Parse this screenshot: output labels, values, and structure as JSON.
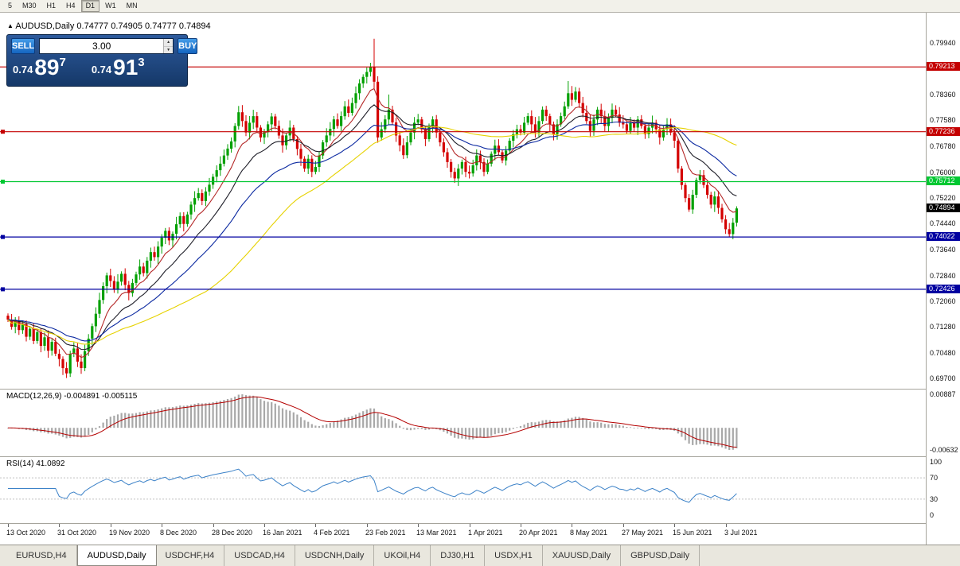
{
  "toolbar": {
    "timeframes": [
      "5",
      "M30",
      "H1",
      "H4",
      "D1",
      "W1",
      "MN"
    ],
    "active": "D1"
  },
  "chart": {
    "title_symbol": "AUDUSD,Daily",
    "title_ohlc": "0.74777 0.74905 0.74777 0.74894",
    "trade_panel": {
      "sell_label": "SELL",
      "buy_label": "BUY",
      "volume": "3.00",
      "bid": {
        "small": "0.74",
        "big": "89",
        "sup": "7"
      },
      "ask": {
        "small": "0.74",
        "big": "91",
        "sup": "3"
      }
    },
    "price_scale": {
      "ticks": [
        "0.79940",
        "0.78360",
        "0.77580",
        "0.76780",
        "0.76000",
        "0.75220",
        "0.74440",
        "0.73640",
        "0.72840",
        "0.72060",
        "0.71280",
        "0.70480",
        "0.69700"
      ],
      "current": "0.74894"
    },
    "levels": [
      {
        "price": 0.79213,
        "label": "0.79213",
        "color": "#c40000",
        "handle": false
      },
      {
        "price": 0.77236,
        "label": "0.77236",
        "color": "#c40000",
        "handle": true
      },
      {
        "price": 0.75712,
        "label": "0.75712",
        "color": "#00c832",
        "handle": true
      },
      {
        "price": 0.74022,
        "label": "0.74022",
        "color": "#0000a0",
        "handle": true
      },
      {
        "price": 0.72426,
        "label": "0.72426",
        "color": "#0000a0",
        "handle": true
      }
    ],
    "macd": {
      "label": "MACD(12,26,9)",
      "values": "-0.004891 -0.005115",
      "scale_top": "0.00887",
      "scale_bottom": "-0.00632"
    },
    "rsi": {
      "label": "RSI(14)",
      "value": "41.0892",
      "levels": [
        "100",
        "70",
        "30",
        "0"
      ]
    },
    "colors": {
      "up": "#00a000",
      "down": "#d40000",
      "macd_hist": "#a8a8a8",
      "macd_signal": "#b40000",
      "rsi_line": "#3c82c8"
    }
  },
  "chart_data": {
    "type": "candlestick",
    "symbol": "AUDUSD",
    "timeframe": "Daily",
    "price_axis": {
      "max": 0.806,
      "min": 0.6944
    },
    "x_labels": [
      {
        "text": "13 Oct 2020",
        "i": 0
      },
      {
        "text": "31 Oct 2020",
        "i": 14
      },
      {
        "text": "19 Nov 2020",
        "i": 28
      },
      {
        "text": "8 Dec 2020",
        "i": 42
      },
      {
        "text": "28 Dec 2020",
        "i": 56
      },
      {
        "text": "16 Jan 2021",
        "i": 70
      },
      {
        "text": "4 Feb 2021",
        "i": 84
      },
      {
        "text": "23 Feb 2021",
        "i": 98
      },
      {
        "text": "13 Mar 2021",
        "i": 112
      },
      {
        "text": "1 Apr 2021",
        "i": 126
      },
      {
        "text": "20 Apr 2021",
        "i": 140
      },
      {
        "text": "8 May 2021",
        "i": 154
      },
      {
        "text": "27 May 2021",
        "i": 168
      },
      {
        "text": "15 Jun 2021",
        "i": 182
      },
      {
        "text": "3 Jul 2021",
        "i": 196
      }
    ],
    "closes": [
      0.715,
      0.7128,
      0.7146,
      0.7118,
      0.7136,
      0.7098,
      0.7122,
      0.7085,
      0.7112,
      0.707,
      0.7096,
      0.7055,
      0.7082,
      0.7046,
      0.703,
      0.7002,
      0.6986,
      0.7046,
      0.7062,
      0.7022,
      0.7002,
      0.7054,
      0.7092,
      0.713,
      0.7168,
      0.721,
      0.7252,
      0.7285,
      0.7268,
      0.7241,
      0.7266,
      0.729,
      0.7256,
      0.7231,
      0.7262,
      0.7288,
      0.7312,
      0.7292,
      0.733,
      0.7356,
      0.7341,
      0.7373,
      0.74,
      0.7421,
      0.7392,
      0.7412,
      0.7441,
      0.7466,
      0.7442,
      0.7471,
      0.7501,
      0.7521,
      0.7536,
      0.7512,
      0.7541,
      0.7562,
      0.7586,
      0.7606,
      0.7626,
      0.7651,
      0.7672,
      0.7694,
      0.7741,
      0.7783,
      0.7756,
      0.7721,
      0.7751,
      0.7771,
      0.7736,
      0.7706,
      0.7722,
      0.7746,
      0.777,
      0.7741,
      0.7712,
      0.7682,
      0.7712,
      0.7736,
      0.7701,
      0.7671,
      0.7641,
      0.7611,
      0.7641,
      0.7601,
      0.7616,
      0.7651,
      0.7691,
      0.7712,
      0.7732,
      0.7761,
      0.7741,
      0.7771,
      0.7801,
      0.7781,
      0.7811,
      0.7841,
      0.7871,
      0.7891,
      0.7906,
      0.7921,
      0.7876,
      0.7706,
      0.7731,
      0.7761,
      0.7791,
      0.7752,
      0.7712,
      0.7682,
      0.7652,
      0.7691,
      0.7721,
      0.7751,
      0.7761,
      0.7731,
      0.7701,
      0.7741,
      0.7761,
      0.7721,
      0.7691,
      0.7661,
      0.7631,
      0.7601,
      0.7581,
      0.7611,
      0.7631,
      0.7601,
      0.7596,
      0.7621,
      0.7651,
      0.7631,
      0.7601,
      0.7626,
      0.7656,
      0.7681,
      0.7661,
      0.7636,
      0.7666,
      0.7696,
      0.7716,
      0.7731,
      0.7721,
      0.7751,
      0.7771,
      0.7746,
      0.7721,
      0.7756,
      0.7791,
      0.7771,
      0.7746,
      0.7716,
      0.7746,
      0.7771,
      0.7801,
      0.7841,
      0.7821,
      0.7846,
      0.7811,
      0.7781,
      0.7756,
      0.7726,
      0.7761,
      0.7791,
      0.7771,
      0.7741,
      0.7766,
      0.7791,
      0.7776,
      0.7751,
      0.7746,
      0.7726,
      0.7751,
      0.7736,
      0.7761,
      0.7741,
      0.7716,
      0.7736,
      0.7751,
      0.7731,
      0.7706,
      0.7731,
      0.7746,
      0.7721,
      0.7696,
      0.7611,
      0.7561,
      0.7521,
      0.7486,
      0.7531,
      0.7576,
      0.7591,
      0.7561,
      0.7531,
      0.7501,
      0.7526,
      0.7491,
      0.7456,
      0.7426,
      0.7411,
      0.7446,
      0.74894
    ],
    "overrides": {
      "16": {
        "low": 0.6972
      },
      "63": {
        "high": 0.7802
      },
      "100": {
        "high": 0.8007,
        "low": 0.7856
      },
      "101": {
        "low": 0.769
      },
      "104": {
        "high": 0.7837
      },
      "153": {
        "high": 0.7878
      },
      "183": {
        "low": 0.7598
      },
      "197": {
        "low": 0.7402
      },
      "199": {
        "high": 0.7496
      }
    },
    "ma_lines": [
      {
        "type": "ema",
        "period": 9,
        "color": "#b42828"
      },
      {
        "type": "ema",
        "period": 18,
        "color": "#1e1e28"
      },
      {
        "type": "ema",
        "period": 34,
        "color": "#0a28a0"
      },
      {
        "type": "sma",
        "period": 55,
        "color": "#e6d200"
      }
    ]
  },
  "bottom_tabs": {
    "tabs": [
      "EURUSD,H4",
      "AUDUSD,Daily",
      "USDCHF,H4",
      "USDCAD,H4",
      "USDCNH,Daily",
      "UKOil,H4",
      "DJ30,H1",
      "USDX,H1",
      "XAUUSD,Daily",
      "GBPUSD,Daily"
    ],
    "active": "AUDUSD,Daily"
  }
}
